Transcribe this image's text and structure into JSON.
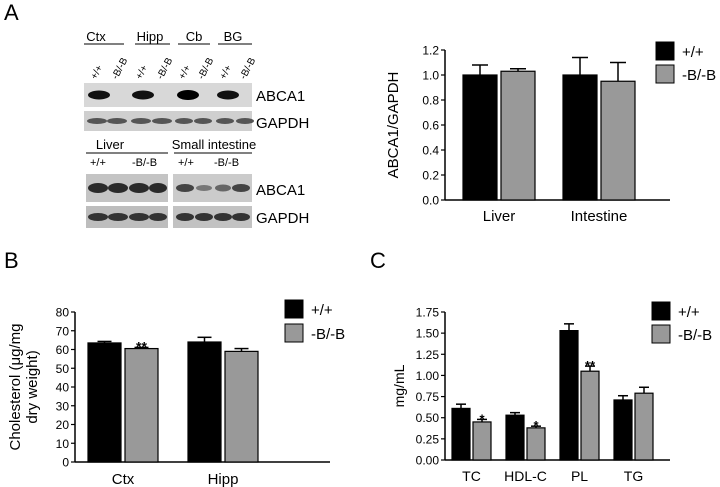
{
  "panel_labels": {
    "a": "A",
    "b": "B",
    "c": "C"
  },
  "colors": {
    "wt": "#000000",
    "ko": "#999999"
  },
  "blot": {
    "top_groups": [
      "Ctx",
      "Hipp",
      "Cb",
      "BG"
    ],
    "bottom_groups": [
      "Liver",
      "Small intestine"
    ],
    "lane_labels": [
      "+/+",
      "-B/-B"
    ],
    "band_labels": [
      "ABCA1",
      "GAPDH"
    ]
  },
  "chart_data": [
    {
      "type": "bar",
      "categories": [
        "Liver",
        "Intestine"
      ],
      "series": [
        {
          "name": "+/+",
          "values": [
            1.0,
            1.0
          ],
          "errors": [
            0.08,
            0.14
          ]
        },
        {
          "name": "-B/-B",
          "values": [
            1.03,
            0.95
          ],
          "errors": [
            0.02,
            0.15
          ]
        }
      ],
      "ylabel": "ABCA1/GAPDH",
      "ylim": [
        0,
        1.2
      ],
      "yticks": [
        "0.0",
        "0.2",
        "0.4",
        "0.6",
        "0.8",
        "1.0",
        "1.2"
      ],
      "significance": [],
      "legend": "top-right"
    },
    {
      "type": "bar",
      "categories": [
        "Ctx",
        "Hipp"
      ],
      "series": [
        {
          "name": "+/+",
          "values": [
            63.5,
            64
          ],
          "errors": [
            0.8,
            2.5
          ]
        },
        {
          "name": "-B/-B",
          "values": [
            60.5,
            59
          ],
          "errors": [
            0.6,
            1.5
          ]
        }
      ],
      "ylabel": "Cholesterol (μg/mg dry weight)",
      "ylabel_lines": [
        "Cholesterol (μg/mg",
        "dry weight)"
      ],
      "ylim": [
        0,
        80
      ],
      "yticks": [
        "0",
        "10",
        "20",
        "30",
        "40",
        "50",
        "60",
        "70",
        "80"
      ],
      "significance": [
        {
          "category": 0,
          "series": 1,
          "mark": "**"
        }
      ],
      "legend": "top-right"
    },
    {
      "type": "bar",
      "categories": [
        "TC",
        "HDL-C",
        "PL",
        "TG"
      ],
      "series": [
        {
          "name": "+/+",
          "values": [
            0.61,
            0.53,
            1.53,
            0.71
          ],
          "errors": [
            0.05,
            0.03,
            0.08,
            0.05
          ]
        },
        {
          "name": "-B/-B",
          "values": [
            0.45,
            0.38,
            1.05,
            0.79
          ],
          "errors": [
            0.03,
            0.02,
            0.06,
            0.07
          ]
        }
      ],
      "ylabel": "mg/mL",
      "ylim": [
        0,
        1.75
      ],
      "yticks": [
        "0.00",
        "0.25",
        "0.50",
        "0.75",
        "1.00",
        "1.25",
        "1.50",
        "1.75"
      ],
      "significance": [
        {
          "category": 0,
          "series": 1,
          "mark": "*"
        },
        {
          "category": 1,
          "series": 1,
          "mark": "*"
        },
        {
          "category": 2,
          "series": 1,
          "mark": "**"
        }
      ],
      "legend": "top-right"
    }
  ]
}
